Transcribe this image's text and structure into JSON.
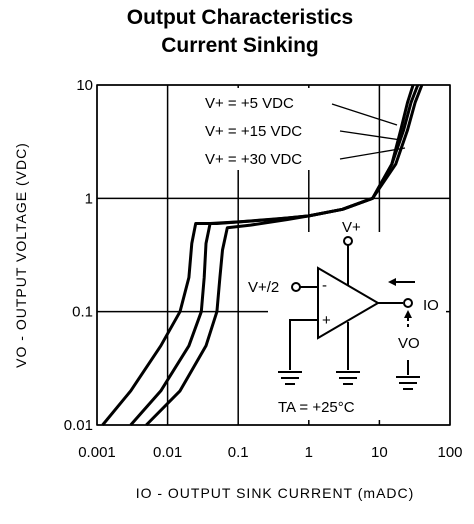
{
  "chart_data": {
    "type": "line",
    "title": "Output Characteristics",
    "subtitle": "Current Sinking",
    "x_label": "IO - OUTPUT SINK CURRENT (mADC)",
    "y_label": "VO - OUTPUT VOLTAGE (VDC)",
    "log_x": true,
    "log_y": true,
    "grid": true,
    "xlim": [
      0.001,
      100
    ],
    "xticks": [
      0.001,
      0.01,
      0.1,
      1,
      10,
      100
    ],
    "ylim": [
      0.01,
      10
    ],
    "yticks": [
      0.01,
      0.1,
      1,
      10
    ],
    "series": [
      {
        "name": "V+ = +5 VDC",
        "color": "#000000",
        "x": [
          0.0012,
          0.003,
          0.008,
          0.015,
          0.02,
          0.022,
          0.025,
          0.05,
          0.3,
          1,
          3,
          8,
          15,
          20,
          25,
          30
        ],
        "values": [
          0.01,
          0.02,
          0.05,
          0.1,
          0.2,
          0.4,
          0.6,
          0.6,
          0.65,
          0.7,
          0.8,
          1,
          2,
          4,
          7,
          10
        ]
      },
      {
        "name": "V+ = +15 VDC",
        "color": "#000000",
        "x": [
          0.003,
          0.008,
          0.02,
          0.03,
          0.033,
          0.035,
          0.04,
          0.1,
          0.5,
          1,
          3,
          8,
          15,
          22,
          28,
          35
        ],
        "values": [
          0.01,
          0.02,
          0.05,
          0.1,
          0.2,
          0.4,
          0.6,
          0.62,
          0.67,
          0.7,
          0.8,
          1,
          2,
          4,
          7,
          10
        ]
      },
      {
        "name": "V+ = +30 VDC",
        "color": "#000000",
        "x": [
          0.005,
          0.015,
          0.035,
          0.05,
          0.055,
          0.06,
          0.07,
          0.15,
          0.5,
          1,
          3,
          8,
          17,
          25,
          32,
          40
        ],
        "values": [
          0.01,
          0.02,
          0.05,
          0.1,
          0.2,
          0.35,
          0.55,
          0.58,
          0.65,
          0.7,
          0.8,
          1,
          2,
          4,
          7,
          10
        ]
      }
    ],
    "annotations": [
      "V+",
      "V+/2",
      "IO",
      "VO",
      "TA = +25°C",
      "-",
      "+"
    ]
  }
}
